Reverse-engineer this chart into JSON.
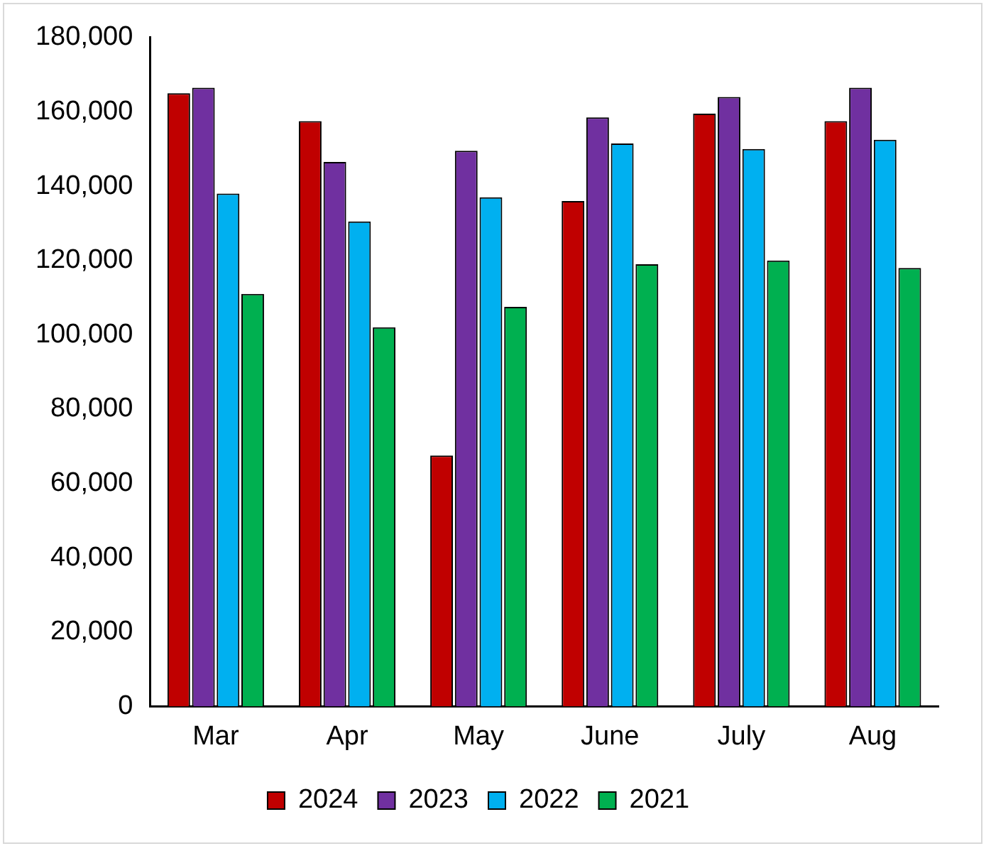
{
  "chart_data": {
    "type": "bar",
    "categories": [
      "Mar",
      "Apr",
      "May",
      "June",
      "July",
      "Aug"
    ],
    "series": [
      {
        "name": "2024",
        "color": "#c00000",
        "values": [
          165000,
          157500,
          67500,
          136000,
          159500,
          157500
        ]
      },
      {
        "name": "2023",
        "color": "#7030a0",
        "values": [
          166500,
          146500,
          149500,
          158500,
          164000,
          166500
        ]
      },
      {
        "name": "2022",
        "color": "#00b0f0",
        "values": [
          138000,
          130500,
          137000,
          151500,
          150000,
          152500
        ]
      },
      {
        "name": "2021",
        "color": "#00b050",
        "values": [
          111000,
          102000,
          107500,
          119000,
          120000,
          118000
        ]
      }
    ],
    "ylim": [
      0,
      180000
    ],
    "yticks": [
      0,
      {
        "value": 20000,
        "label": "20,000"
      },
      {
        "value": 40000,
        "label": "40,000"
      },
      {
        "value": 60000,
        "label": "60,000"
      },
      {
        "value": 80000,
        "label": "80,000"
      },
      {
        "value": 100000,
        "label": "100,000"
      },
      {
        "value": 120000,
        "label": "120,000"
      },
      {
        "value": 140000,
        "label": "140,000"
      },
      {
        "value": 160000,
        "label": "160,000"
      },
      {
        "value": 180000,
        "label": "180,000"
      }
    ],
    "grid": false,
    "legend": "bottom"
  }
}
